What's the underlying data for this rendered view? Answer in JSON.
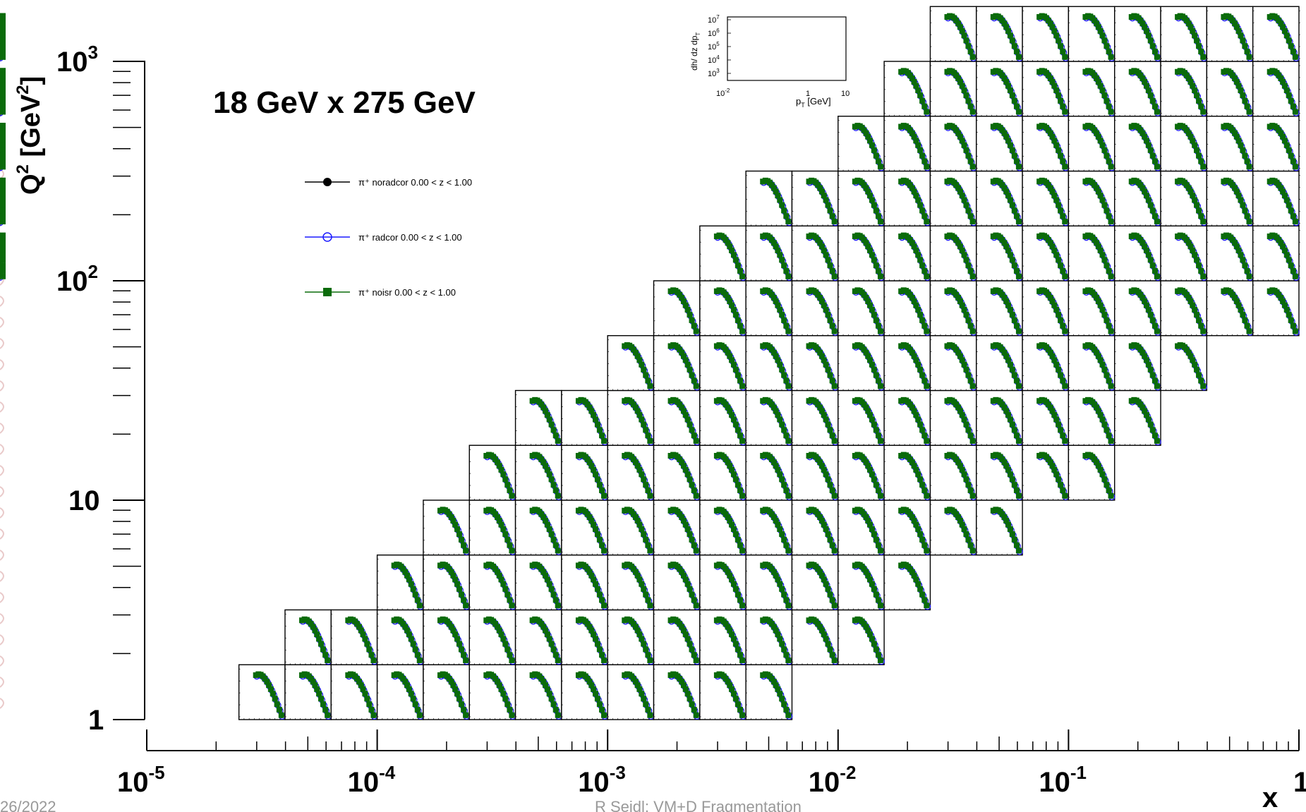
{
  "title": "18 GeV x 275 GeV",
  "ylabel": {
    "main": "Q",
    "sup1": "2",
    "unit": " [GeV",
    "sup2": "2",
    "close": "]"
  },
  "xlabel": "x",
  "footer": {
    "date": "26/2022",
    "center": "R Seidl: VM+D Fragmentation"
  },
  "legend": [
    {
      "label": "π⁺ noradcor 0.00 < z < 1.00",
      "marker": "filled-circle",
      "color": "#000000"
    },
    {
      "label": "π⁺ radcor 0.00 < z < 1.00",
      "marker": "open-circle",
      "color": "#1a1aff"
    },
    {
      "label": "π⁺ noisr 0.00 < z < 1.00",
      "marker": "filled-square",
      "color": "#0a6b0a"
    }
  ],
  "inset_key": {
    "ylabel": "dh/ dz dp",
    "ylabel_sub": "T",
    "y_ticks": [
      "10",
      "10",
      "10",
      "10",
      "10"
    ],
    "y_exps": [
      "7",
      "6",
      "5",
      "4",
      "3"
    ],
    "x_ticks": [
      {
        "base": "10",
        "exp": "-2"
      },
      {
        "base": "1",
        "exp": ""
      },
      {
        "base": "10",
        "exp": ""
      }
    ],
    "xlabel": "p",
    "xlabel_sub": "T",
    "xlabel_unit": " [GeV]"
  },
  "chart_data": {
    "type": "scatter",
    "title": "18 GeV x 275 GeV",
    "xlabel": "x",
    "ylabel": "Q² [GeV²]",
    "x_scale": "log",
    "y_scale": "log",
    "xlim": [
      1e-05,
      1
    ],
    "ylim": [
      0.85,
      1300
    ],
    "x_ticks": [
      {
        "base": "10",
        "exp": "-5"
      },
      {
        "base": "10",
        "exp": "-4"
      },
      {
        "base": "10",
        "exp": "-3"
      },
      {
        "base": "10",
        "exp": "-2"
      },
      {
        "base": "10",
        "exp": "-1"
      },
      {
        "base": "1",
        "exp": ""
      }
    ],
    "y_ticks": [
      {
        "v": 1,
        "base": "1",
        "exp": ""
      },
      {
        "v": 10,
        "base": "10",
        "exp": ""
      },
      {
        "v": 100,
        "base": "10",
        "exp": "2"
      },
      {
        "v": 1000,
        "base": "10",
        "exp": "3"
      }
    ],
    "grid": false,
    "legend_position": "upper-left",
    "bins": {
      "x_edges_log10": [
        -4.6,
        -4.4,
        -4.2,
        -4.0,
        -3.8,
        -3.6,
        -3.4,
        -3.2,
        -3.0,
        -2.8,
        -2.6,
        -2.4,
        -2.2,
        -2.0,
        -1.8,
        -1.6,
        -1.4,
        -1.2,
        -1.0,
        -0.8,
        -0.6,
        -0.4,
        -0.2,
        0.0
      ],
      "q2_edges_log10": [
        0.0,
        0.25,
        0.5,
        0.75,
        1.0,
        1.25,
        1.5,
        1.75,
        2.0,
        2.25,
        2.5,
        2.75,
        3.0,
        3.25
      ],
      "filled_columns_per_row": [
        {
          "row": 0,
          "col_start": 0,
          "col_end": 12
        },
        {
          "row": 1,
          "col_start": 1,
          "col_end": 14
        },
        {
          "row": 2,
          "col_start": 3,
          "col_end": 15
        },
        {
          "row": 3,
          "col_start": 4,
          "col_end": 17
        },
        {
          "row": 4,
          "col_start": 5,
          "col_end": 19
        },
        {
          "row": 5,
          "col_start": 6,
          "col_end": 20
        },
        {
          "row": 6,
          "col_start": 8,
          "col_end": 21
        },
        {
          "row": 7,
          "col_start": 9,
          "col_end": 23
        },
        {
          "row": 8,
          "col_start": 10,
          "col_end": 24
        },
        {
          "row": 9,
          "col_start": 11,
          "col_end": 25
        },
        {
          "row": 10,
          "col_start": 13,
          "col_end": 25
        },
        {
          "row": 11,
          "col_start": 14,
          "col_end": 25
        },
        {
          "row": 12,
          "col_start": 15,
          "col_end": 25
        }
      ]
    },
    "series": [
      {
        "name": "π⁺ noradcor 0.00 < z < 1.00",
        "marker": "filled-circle",
        "color": "#000000"
      },
      {
        "name": "π⁺ radcor 0.00 < z < 1.00",
        "marker": "open-circle",
        "color": "#1a1aff"
      },
      {
        "name": "π⁺ noisr 0.00 < z < 1.00",
        "marker": "filled-square",
        "color": "#0a6b0a"
      }
    ],
    "inset_spectrum_shape": {
      "pT": [
        0.12,
        0.18,
        0.26,
        0.36,
        0.5,
        0.7,
        0.95,
        1.3,
        1.8,
        2.5,
        3.5,
        5.0,
        7.0
      ],
      "log10_dN": [
        6.6,
        6.7,
        6.65,
        6.5,
        6.25,
        5.95,
        5.6,
        5.2,
        4.75,
        4.25,
        3.7,
        3.15,
        2.6
      ]
    }
  }
}
